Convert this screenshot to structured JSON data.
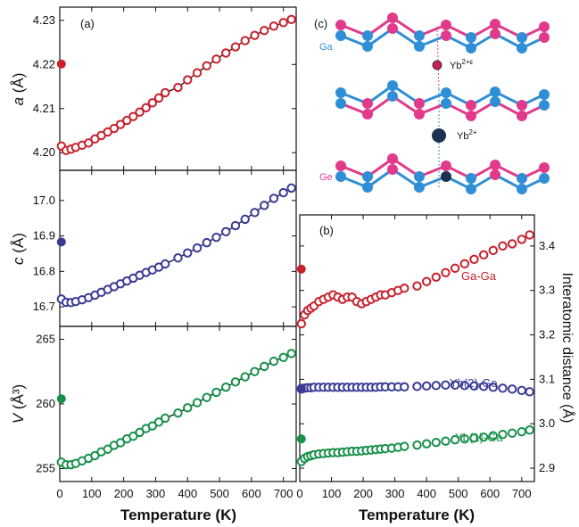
{
  "colors": {
    "red": "#c8202c",
    "blue": "#3a3a96",
    "green": "#16904a",
    "atom_pink": "#e23a8a",
    "atom_blue": "#2f8fd6",
    "yb_dark": "#1c3050"
  },
  "chart_data": [
    {
      "id": "a",
      "type": "scatter",
      "panel_label": "(a)",
      "ylabel_var": "a",
      "ylabel_unit": " (Å)",
      "xlim": [
        0,
        740
      ],
      "ylim": [
        4.196,
        4.233
      ],
      "yticks": [
        4.2,
        4.21,
        4.22,
        4.23
      ],
      "ytick_labels": [
        "4.20",
        "4.21",
        "4.22",
        "4.23"
      ],
      "xticks": [
        0,
        100,
        200,
        300,
        400,
        500,
        600,
        700
      ],
      "color": "#c8202c",
      "open_points": {
        "x": [
          5,
          20,
          35,
          50,
          70,
          90,
          110,
          130,
          150,
          170,
          190,
          210,
          230,
          250,
          270,
          290,
          310,
          330,
          370,
          400,
          430,
          460,
          490,
          520,
          550,
          580,
          610,
          640,
          670,
          700,
          725
        ],
        "y": [
          4.2015,
          4.2005,
          4.2008,
          4.2012,
          4.2017,
          4.2022,
          4.2031,
          4.2039,
          4.2047,
          4.2055,
          4.2064,
          4.2073,
          4.2082,
          4.2092,
          4.2102,
          4.2113,
          4.2124,
          4.2136,
          4.2148,
          4.2165,
          4.2181,
          4.2197,
          4.2212,
          4.2226,
          4.224,
          4.2254,
          4.2266,
          4.2277,
          4.2287,
          4.2295,
          4.2302
        ]
      },
      "fit_line": {
        "x": [
          5,
          20,
          35,
          50,
          70,
          90,
          110,
          130,
          150,
          170,
          190,
          210,
          230,
          250,
          270,
          290,
          310,
          330,
          370,
          400,
          430,
          460,
          490,
          520,
          550,
          580,
          610,
          640,
          670,
          700,
          725
        ],
        "y": [
          4.2015,
          4.2005,
          4.2008,
          4.2012,
          4.2017,
          4.2022,
          4.2031,
          4.2039,
          4.2047,
          4.2055,
          4.2064,
          4.2073,
          4.2082,
          4.2092,
          4.2102,
          4.2113,
          4.2124,
          4.2136,
          4.2148,
          4.2165,
          4.2181,
          4.2197,
          4.2212,
          4.2226,
          4.224,
          4.2254,
          4.2266,
          4.2277,
          4.2287,
          4.2295,
          4.2302
        ]
      },
      "filled_points": {
        "x": [
          5
        ],
        "y": [
          4.2201
        ]
      }
    },
    {
      "id": "c",
      "type": "scatter",
      "panel_label": "",
      "ylabel_var": "c",
      "ylabel_unit": " (Å)",
      "xlim": [
        0,
        740
      ],
      "ylim": [
        16.645,
        17.085
      ],
      "yticks": [
        16.7,
        16.8,
        16.9,
        17.0
      ],
      "ytick_labels": [
        "16.7",
        "16.8",
        "16.9",
        "17.0"
      ],
      "xticks": [
        0,
        100,
        200,
        300,
        400,
        500,
        600,
        700
      ],
      "color": "#3a3a96",
      "open_points": {
        "x": [
          5,
          20,
          35,
          50,
          70,
          90,
          110,
          130,
          150,
          170,
          190,
          210,
          230,
          250,
          270,
          290,
          310,
          330,
          370,
          400,
          430,
          460,
          490,
          520,
          550,
          580,
          610,
          640,
          670,
          700,
          725
        ],
        "y": [
          16.722,
          16.713,
          16.712,
          16.715,
          16.72,
          16.726,
          16.733,
          16.741,
          16.749,
          16.757,
          16.765,
          16.773,
          16.781,
          16.789,
          16.797,
          16.804,
          16.812,
          16.821,
          16.838,
          16.852,
          16.866,
          16.881,
          16.896,
          16.912,
          16.929,
          16.947,
          16.966,
          16.986,
          17.006,
          17.022,
          17.035
        ]
      },
      "fit_line": {
        "x": [
          5,
          20,
          35,
          50,
          70,
          90,
          110,
          130,
          150,
          170,
          190,
          210,
          230,
          250,
          270,
          290,
          310,
          330,
          370,
          400,
          430,
          460,
          490,
          520,
          550,
          580,
          610,
          640,
          670,
          700,
          725
        ],
        "y": [
          16.722,
          16.713,
          16.712,
          16.715,
          16.72,
          16.726,
          16.733,
          16.741,
          16.749,
          16.757,
          16.765,
          16.773,
          16.781,
          16.789,
          16.797,
          16.804,
          16.812,
          16.821,
          16.838,
          16.852,
          16.866,
          16.881,
          16.896,
          16.912,
          16.929,
          16.947,
          16.966,
          16.986,
          17.006,
          17.022,
          17.035
        ]
      },
      "filled_points": {
        "x": [
          5
        ],
        "y": [
          16.883
        ]
      }
    },
    {
      "id": "V",
      "type": "scatter",
      "panel_label": "",
      "ylabel_var": "V",
      "ylabel_unit": " (Å³)",
      "xlim": [
        0,
        740
      ],
      "ylim": [
        254.0,
        266.0
      ],
      "yticks": [
        255,
        260,
        265
      ],
      "ytick_labels": [
        "255",
        "260",
        "265"
      ],
      "xticks": [
        0,
        100,
        200,
        300,
        400,
        500,
        600,
        700
      ],
      "xtick_labels": [
        "0",
        "100",
        "200",
        "300",
        "400",
        "500",
        "600",
        "700"
      ],
      "xlabel": "Temperature (K)",
      "color": "#16904a",
      "open_points": {
        "x": [
          5,
          20,
          35,
          50,
          70,
          90,
          110,
          130,
          150,
          170,
          190,
          210,
          230,
          250,
          270,
          290,
          310,
          330,
          370,
          400,
          430,
          460,
          490,
          520,
          550,
          580,
          610,
          640,
          670,
          700,
          725
        ],
        "y": [
          255.5,
          255.3,
          255.3,
          255.4,
          255.6,
          255.8,
          256.0,
          256.3,
          256.5,
          256.8,
          257.0,
          257.3,
          257.5,
          257.8,
          258.1,
          258.3,
          258.6,
          258.9,
          259.3,
          259.7,
          260.1,
          260.5,
          260.9,
          261.3,
          261.7,
          262.1,
          262.5,
          262.9,
          263.3,
          263.6,
          263.9
        ]
      },
      "fit_line": {
        "x": [
          5,
          20,
          35,
          50,
          70,
          90,
          110,
          130,
          150,
          170,
          190,
          210,
          230,
          250,
          270,
          290,
          310,
          330,
          370,
          400,
          430,
          460,
          490,
          520,
          550,
          580,
          610,
          640,
          670,
          700,
          725
        ],
        "y": [
          255.5,
          255.3,
          255.3,
          255.4,
          255.6,
          255.8,
          256.0,
          256.3,
          256.5,
          256.8,
          257.0,
          257.3,
          257.5,
          257.8,
          258.1,
          258.3,
          258.6,
          258.9,
          259.3,
          259.7,
          260.1,
          260.5,
          260.9,
          261.3,
          261.7,
          262.1,
          262.5,
          262.9,
          263.3,
          263.6,
          263.9
        ]
      },
      "filled_points": {
        "x": [
          5
        ],
        "y": [
          260.4
        ]
      }
    },
    {
      "id": "b",
      "type": "scatter",
      "panel_label": "(b)",
      "xlim": [
        0,
        740
      ],
      "ylim": [
        2.87,
        3.47
      ],
      "yticks": [
        2.9,
        3.0,
        3.1,
        3.2,
        3.3,
        3.4
      ],
      "ytick_labels": [
        "2.9",
        "3.0",
        "3.1",
        "3.2",
        "3.3",
        "3.4"
      ],
      "y_axis_side": "right",
      "ylabel": "Interatomic distance (Å)",
      "xticks": [
        0,
        100,
        200,
        300,
        400,
        500,
        600,
        700
      ],
      "xtick_labels": [
        "0",
        "100",
        "200",
        "300",
        "400",
        "500",
        "600",
        "700"
      ],
      "xlabel": "Temperature (K)",
      "series": [
        {
          "name": "Ga-Ga",
          "color": "#c8202c",
          "open_points": {
            "x": [
              5,
              15,
              25,
              35,
              45,
              60,
              75,
              90,
              105,
              120,
              135,
              150,
              165,
              180,
              195,
              210,
              225,
              240,
              255,
              270,
              290,
              310,
              330,
              370,
              400,
              430,
              460,
              490,
              520,
              550,
              580,
              610,
              640,
              670,
              700,
              725
            ],
            "y": [
              3.225,
              3.245,
              3.255,
              3.26,
              3.265,
              3.275,
              3.28,
              3.285,
              3.29,
              3.285,
              3.28,
              3.285,
              3.285,
              3.275,
              3.27,
              3.275,
              3.28,
              3.285,
              3.29,
              3.29,
              3.295,
              3.3,
              3.305,
              3.31,
              3.32,
              3.33,
              3.34,
              3.35,
              3.36,
              3.37,
              3.38,
              3.39,
              3.4,
              3.405,
              3.415,
              3.425
            ]
          },
          "filled_points": {
            "x": [
              5
            ],
            "y": [
              3.348
            ]
          }
        },
        {
          "name": "Yb(2)-Ge",
          "color": "#3a3a96",
          "open_points": {
            "x": [
              5,
              15,
              25,
              35,
              45,
              60,
              75,
              90,
              105,
              120,
              135,
              150,
              165,
              180,
              195,
              210,
              225,
              240,
              255,
              270,
              290,
              310,
              330,
              370,
              400,
              430,
              460,
              490,
              520,
              550,
              580,
              610,
              640,
              670,
              700,
              725
            ],
            "y": [
              3.078,
              3.08,
              3.081,
              3.081,
              3.082,
              3.082,
              3.082,
              3.082,
              3.082,
              3.082,
              3.082,
              3.082,
              3.082,
              3.082,
              3.082,
              3.082,
              3.082,
              3.082,
              3.083,
              3.083,
              3.083,
              3.083,
              3.083,
              3.084,
              3.085,
              3.086,
              3.087,
              3.087,
              3.086,
              3.085,
              3.084,
              3.082,
              3.08,
              3.078,
              3.075,
              3.072
            ]
          },
          "filled_points": {
            "x": [
              5
            ],
            "y": [
              3.08
            ]
          }
        },
        {
          "name": "Yb(1)-Ga",
          "color": "#16904a",
          "open_points": {
            "x": [
              5,
              15,
              25,
              35,
              45,
              60,
              75,
              90,
              105,
              120,
              135,
              150,
              165,
              180,
              195,
              210,
              225,
              240,
              255,
              270,
              290,
              310,
              330,
              370,
              400,
              430,
              460,
              490,
              520,
              550,
              580,
              610,
              640,
              670,
              700,
              725
            ],
            "y": [
              2.915,
              2.922,
              2.926,
              2.928,
              2.93,
              2.932,
              2.933,
              2.934,
              2.935,
              2.935,
              2.936,
              2.937,
              2.938,
              2.938,
              2.939,
              2.94,
              2.941,
              2.942,
              2.943,
              2.944,
              2.945,
              2.947,
              2.949,
              2.952,
              2.955,
              2.958,
              2.961,
              2.964,
              2.966,
              2.968,
              2.97,
              2.973,
              2.976,
              2.979,
              2.982,
              2.986
            ]
          },
          "filled_points": {
            "x": [
              5
            ],
            "y": [
              2.966
            ]
          }
        }
      ]
    }
  ],
  "structure": {
    "panel_label": "(c)",
    "labels": {
      "ga": "Ga",
      "ge": "Ge",
      "yb_upper_base": "Yb",
      "yb_upper_sup": "2+ε",
      "yb_lower_base": "Yb",
      "yb_lower_sup": "2+"
    }
  }
}
